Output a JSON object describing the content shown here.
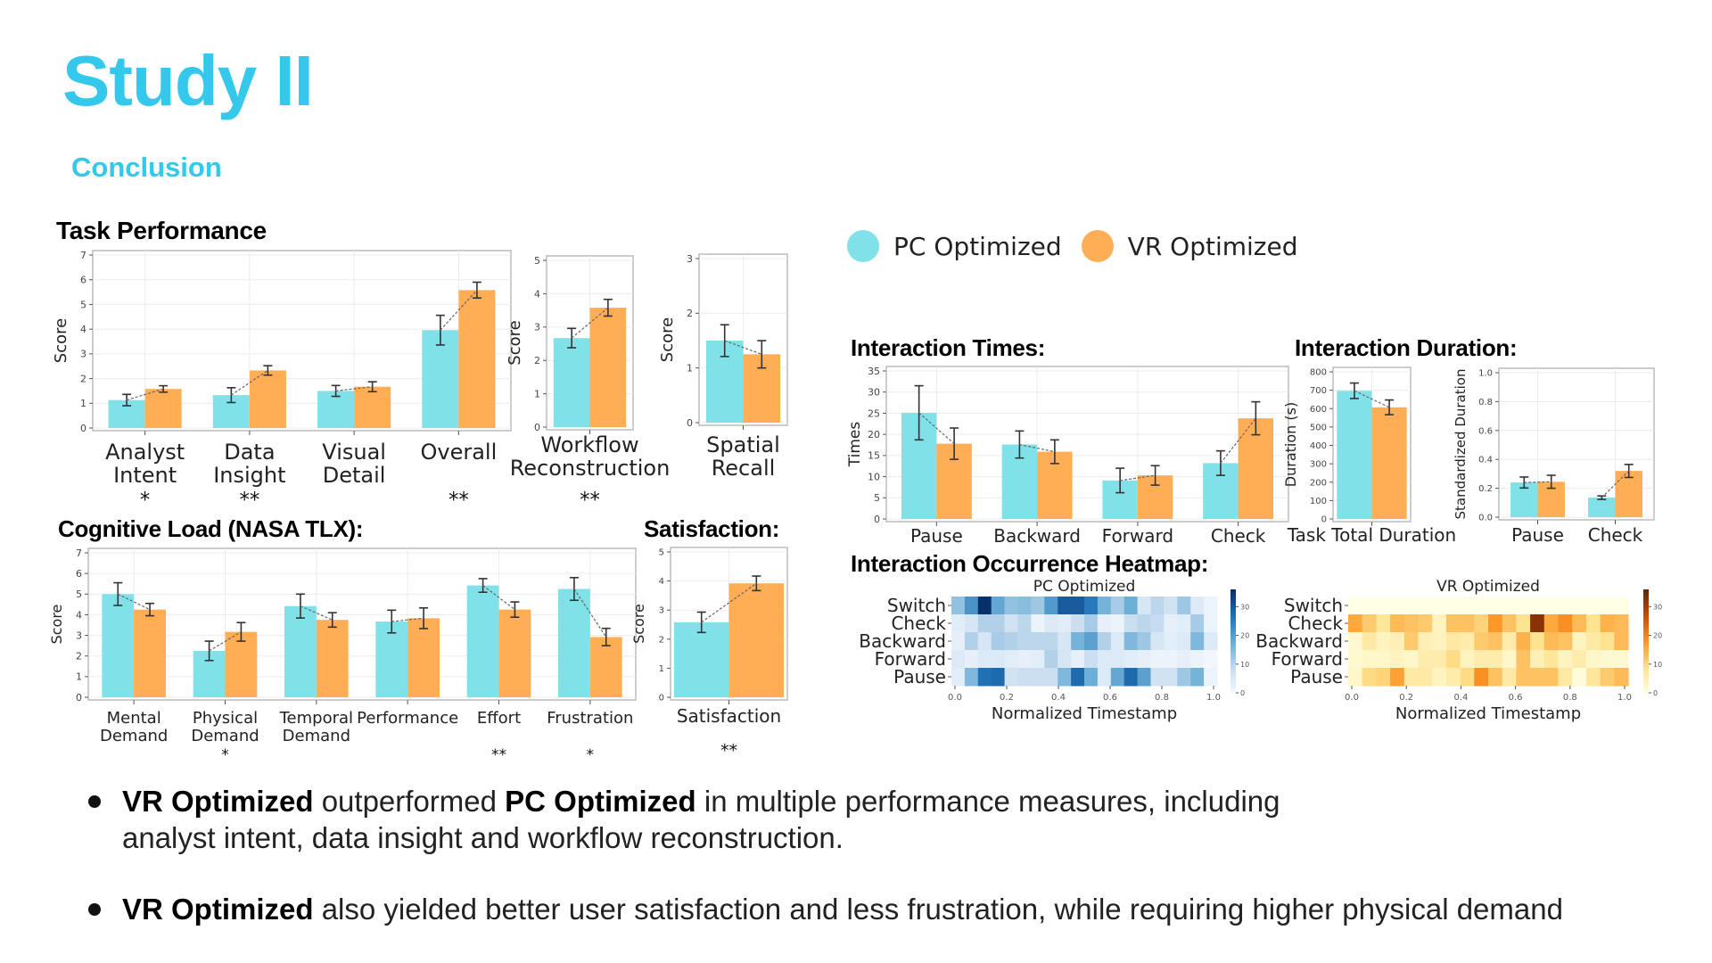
{
  "slide": {
    "title": "Study II",
    "subtitle": "Conclusion"
  },
  "colors": {
    "accent": "#33c8ec",
    "pc": "#80e1e8",
    "vr": "#ffae55",
    "error_bar": "#333333"
  },
  "legend": {
    "items": [
      {
        "label": "PC Optimized",
        "color": "#80e1e8"
      },
      {
        "label": "VR Optimized",
        "color": "#ffae55"
      }
    ]
  },
  "sections": {
    "task_performance": "Task Performance",
    "cognitive_load": "Cognitive Load (NASA TLX):",
    "satisfaction": "Satisfaction:",
    "interaction_times": "Interaction Times:",
    "interaction_duration": "Interaction Duration:",
    "heatmap": "Interaction Occurrence Heatmap:"
  },
  "chart_data": [
    {
      "id": "task_performance",
      "type": "bar",
      "title": "Task Performance",
      "ylabel": "Score",
      "xlabel": "",
      "ylim": [
        0,
        7
      ],
      "yticks": [
        0,
        1,
        2,
        3,
        4,
        5,
        6,
        7
      ],
      "grid": true,
      "categories": [
        [
          "Analyst",
          "Intent"
        ],
        [
          "Data",
          "Insight"
        ],
        [
          "Visual",
          "Detail"
        ],
        [
          "Overall"
        ]
      ],
      "significance": [
        "*",
        "**",
        "",
        "**"
      ],
      "series": [
        {
          "name": "PC Optimized",
          "values": [
            1.13,
            1.33,
            1.5,
            3.96
          ],
          "err": [
            0.23,
            0.3,
            0.22,
            0.6
          ]
        },
        {
          "name": "VR Optimized",
          "values": [
            1.58,
            2.33,
            1.67,
            5.58
          ],
          "err": [
            0.13,
            0.19,
            0.2,
            0.32
          ]
        }
      ]
    },
    {
      "id": "workflow",
      "type": "bar",
      "ylabel": "Score",
      "ylim": [
        0,
        5
      ],
      "yticks": [
        0,
        1,
        2,
        3,
        4,
        5
      ],
      "grid": true,
      "categories": [
        [
          "Workflow",
          "Reconstruction"
        ]
      ],
      "significance": [
        "**"
      ],
      "series": [
        {
          "name": "PC Optimized",
          "values": [
            2.67
          ],
          "err": [
            0.29
          ]
        },
        {
          "name": "VR Optimized",
          "values": [
            3.58
          ],
          "err": [
            0.25
          ]
        }
      ]
    },
    {
      "id": "spatial_recall",
      "type": "bar",
      "ylabel": "Score",
      "ylim": [
        0,
        3
      ],
      "yticks": [
        0,
        1,
        2,
        3
      ],
      "grid": true,
      "categories": [
        [
          "Spatial",
          "Recall"
        ]
      ],
      "significance": [
        ""
      ],
      "series": [
        {
          "name": "PC Optimized",
          "values": [
            1.5
          ],
          "err": [
            0.29
          ]
        },
        {
          "name": "VR Optimized",
          "values": [
            1.25
          ],
          "err": [
            0.25
          ]
        }
      ]
    },
    {
      "id": "cognitive_load",
      "type": "bar",
      "title": "Cognitive Load (NASA TLX):",
      "ylabel": "Score",
      "ylim": [
        0,
        7
      ],
      "yticks": [
        0,
        1,
        2,
        3,
        4,
        5,
        6,
        7
      ],
      "grid": true,
      "categories": [
        [
          "Mental",
          "Demand"
        ],
        [
          "Physical",
          "Demand"
        ],
        [
          "Temporal",
          "Demand"
        ],
        [
          "Performance"
        ],
        [
          "Effort"
        ],
        [
          "Frustration"
        ]
      ],
      "significance": [
        "",
        "*",
        "",
        "",
        "**",
        "*"
      ],
      "series": [
        {
          "name": "PC Optimized",
          "values": [
            5.0,
            2.25,
            4.42,
            3.67,
            5.42,
            5.25
          ],
          "err": [
            0.55,
            0.47,
            0.58,
            0.55,
            0.33,
            0.55
          ]
        },
        {
          "name": "VR Optimized",
          "values": [
            4.25,
            3.17,
            3.75,
            3.83,
            4.25,
            2.92
          ],
          "err": [
            0.3,
            0.45,
            0.35,
            0.5,
            0.37,
            0.42
          ]
        }
      ]
    },
    {
      "id": "satisfaction",
      "type": "bar",
      "title": "Satisfaction:",
      "ylabel": "Score",
      "ylim": [
        0,
        5
      ],
      "yticks": [
        0,
        1,
        2,
        3,
        4,
        5
      ],
      "grid": true,
      "categories": [
        [
          "Satisfaction"
        ]
      ],
      "significance": [
        "**"
      ],
      "series": [
        {
          "name": "PC Optimized",
          "values": [
            2.58
          ],
          "err": [
            0.35
          ]
        },
        {
          "name": "VR Optimized",
          "values": [
            3.92
          ],
          "err": [
            0.25
          ]
        }
      ]
    },
    {
      "id": "interaction_times",
      "type": "bar",
      "title": "Interaction Times:",
      "ylabel": "Times",
      "ylim": [
        0,
        35
      ],
      "yticks": [
        0,
        5,
        10,
        15,
        20,
        25,
        30,
        35
      ],
      "grid": true,
      "categories": [
        [
          "Pause"
        ],
        [
          "Backward"
        ],
        [
          "Forward"
        ],
        [
          "Check"
        ]
      ],
      "significance": [
        "",
        "",
        "",
        ""
      ],
      "series": [
        {
          "name": "PC Optimized",
          "values": [
            25.1,
            17.6,
            9.1,
            13.2
          ],
          "err": [
            6.4,
            3.2,
            2.9,
            2.9
          ]
        },
        {
          "name": "VR Optimized",
          "values": [
            17.8,
            15.9,
            10.3,
            23.8
          ],
          "err": [
            3.7,
            2.8,
            2.3,
            3.9
          ]
        }
      ]
    },
    {
      "id": "task_total_duration",
      "type": "bar",
      "ylabel": "Duration (s)",
      "ylim": [
        0,
        800
      ],
      "yticks": [
        0,
        100,
        200,
        300,
        400,
        500,
        600,
        700,
        800
      ],
      "grid": true,
      "categories": [
        [
          "Task Total Duration"
        ]
      ],
      "significance": [
        ""
      ],
      "series": [
        {
          "name": "PC Optimized",
          "values": [
            697
          ],
          "err": [
            42
          ]
        },
        {
          "name": "VR Optimized",
          "values": [
            607
          ],
          "err": [
            40
          ]
        }
      ]
    },
    {
      "id": "standardized_duration",
      "type": "bar",
      "ylabel": "Standardized Duration",
      "ylim": [
        0,
        1.0
      ],
      "yticks": [
        0.0,
        0.2,
        0.4,
        0.6,
        0.8,
        1.0
      ],
      "grid": true,
      "categories": [
        [
          "Pause"
        ],
        [
          "Check"
        ]
      ],
      "significance": [
        "",
        ""
      ],
      "series": [
        {
          "name": "PC Optimized",
          "values": [
            0.24,
            0.135
          ],
          "err": [
            0.038,
            0.012
          ]
        },
        {
          "name": "VR Optimized",
          "values": [
            0.245,
            0.32
          ],
          "err": [
            0.045,
            0.045
          ]
        }
      ]
    },
    {
      "id": "heatmap_pc",
      "type": "heatmap",
      "title": "PC Optimized",
      "xlabel": "Normalized Timestamp",
      "xticks": [
        "0.0",
        "0.2",
        "0.4",
        "0.6",
        "0.8",
        "1.0"
      ],
      "rows": [
        "Switch",
        "Check",
        "Backward",
        "Forward",
        "Pause"
      ],
      "colorbar": {
        "min": 0,
        "max": 36,
        "ticks": [
          0,
          10,
          20,
          30
        ],
        "colormap": "Blues"
      },
      "values": [
        [
          14,
          22,
          36,
          19,
          14,
          15,
          13,
          21,
          30,
          30,
          26,
          17,
          12,
          18,
          6,
          10,
          7,
          13,
          5,
          2
        ],
        [
          4,
          6,
          11,
          11,
          7,
          10,
          2,
          5,
          4,
          8,
          12,
          3,
          2,
          8,
          10,
          9,
          3,
          4,
          12,
          2
        ],
        [
          3,
          11,
          6,
          12,
          11,
          10,
          10,
          10,
          6,
          17,
          20,
          11,
          5,
          16,
          13,
          6,
          4,
          5,
          16,
          5
        ],
        [
          5,
          3,
          5,
          5,
          4,
          3,
          4,
          11,
          6,
          3,
          8,
          5,
          5,
          4,
          3,
          2,
          2,
          3,
          2,
          1
        ],
        [
          4,
          16,
          27,
          28,
          7,
          8,
          8,
          8,
          16,
          28,
          18,
          5,
          19,
          28,
          20,
          7,
          7,
          13,
          17,
          2
        ]
      ]
    },
    {
      "id": "heatmap_vr",
      "type": "heatmap",
      "title": "VR Optimized",
      "xlabel": "Normalized Timestamp",
      "xticks": [
        "0.0",
        "0.2",
        "0.4",
        "0.6",
        "0.8",
        "1.0"
      ],
      "rows": [
        "Switch",
        "Check",
        "Backward",
        "Forward",
        "Pause"
      ],
      "colorbar": {
        "min": 0,
        "max": 36,
        "ticks": [
          0,
          10,
          20,
          30
        ],
        "colormap": "YlOrBr"
      },
      "values": [
        [
          0,
          0,
          0,
          0,
          0,
          0,
          0,
          0,
          0,
          0,
          0,
          0,
          0,
          0,
          0,
          0,
          0,
          0,
          0,
          0
        ],
        [
          16,
          12,
          8,
          14,
          13,
          12,
          4,
          13,
          13,
          11,
          18,
          13,
          9,
          33,
          16,
          19,
          14,
          9,
          15,
          14
        ],
        [
          2,
          7,
          4,
          5,
          12,
          5,
          4,
          7,
          6,
          12,
          13,
          6,
          15,
          9,
          14,
          13,
          4,
          7,
          9,
          14
        ],
        [
          2,
          3,
          3,
          4,
          3,
          6,
          6,
          10,
          4,
          6,
          6,
          3,
          13,
          5,
          8,
          4,
          6,
          3,
          2,
          2
        ],
        [
          3,
          10,
          11,
          17,
          7,
          7,
          4,
          6,
          10,
          19,
          13,
          7,
          13,
          13,
          13,
          7,
          1,
          8,
          12,
          14
        ]
      ]
    }
  ],
  "bullets": [
    {
      "parts": [
        {
          "text": "VR Optimized",
          "bold": true
        },
        {
          "text": " outperformed ",
          "bold": false
        },
        {
          "text": "PC Optimized",
          "bold": true
        },
        {
          "text": " in multiple performance measures, including analyst intent, data insight and workflow reconstruction.",
          "bold": false
        }
      ]
    },
    {
      "parts": [
        {
          "text": "VR Optimized",
          "bold": true
        },
        {
          "text": " also yielded better user satisfaction and less frustration, while requiring higher physical demand",
          "bold": false
        }
      ]
    }
  ]
}
